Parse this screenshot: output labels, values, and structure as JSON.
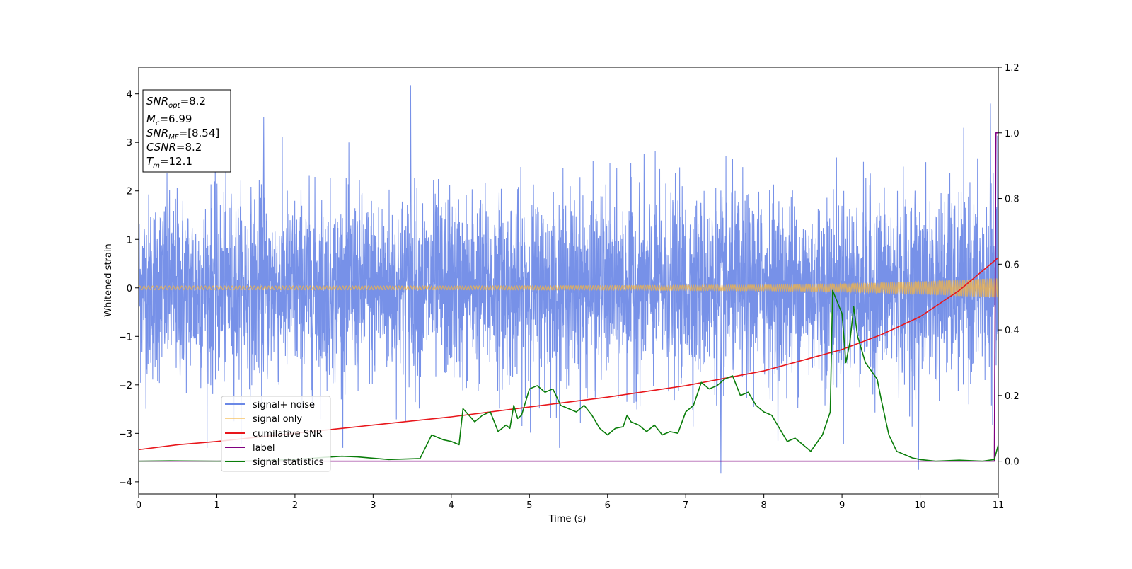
{
  "chart_data": {
    "type": "line",
    "xlabel": "Time (s)",
    "ylabel": "Whitened strain",
    "xlim": [
      0,
      11
    ],
    "ylim_left": [
      -4.25,
      4.55
    ],
    "ylim_right": [
      -0.1,
      1.2
    ],
    "xticks": [
      0,
      1,
      2,
      3,
      4,
      5,
      6,
      7,
      8,
      9,
      10,
      11
    ],
    "yticks_left": [
      -4,
      -3,
      -2,
      -1,
      0,
      1,
      2,
      3,
      4
    ],
    "yticks_right": [
      0.0,
      0.2,
      0.4,
      0.6,
      0.8,
      1.0,
      1.2
    ],
    "ytick_labels_right": [
      "0.0",
      "0.2",
      "0.4",
      "0.6",
      "0.8",
      "1.0",
      "1.2"
    ],
    "ytick_labels_left": [
      "−4",
      "−3",
      "−2",
      "−1",
      "0",
      "1",
      "2",
      "3",
      "4"
    ],
    "legend_position": "lower-left",
    "info_box": {
      "snr_opt": "=8.2",
      "mc": "=6.99",
      "snr_mf": "=[8.54]",
      "csnr": "=8.2",
      "tm": "=12.1",
      "snr_label": "SNR",
      "snr_opt_sub": "opt",
      "mc_label": "M",
      "mc_sub": "c",
      "snr_mf_sub": "MF",
      "csnr_label": "CSNR",
      "tm_label": "T",
      "tm_sub": "m"
    },
    "series": [
      {
        "name": "signal+ noise",
        "color": "#6b88e6",
        "axis": "left",
        "note": "dense whitened noise, roughly within ±2.5 with spikes to ±4",
        "peaks": [
          {
            "x": 3.48,
            "y": 4.18
          },
          {
            "x": 10.9,
            "y": 3.8
          },
          {
            "x": 7.45,
            "y": -3.83
          },
          {
            "x": 1.6,
            "y": 3.52
          },
          {
            "x": 9.98,
            "y": -3.75
          }
        ]
      },
      {
        "name": "signal only",
        "color": "#f5b642",
        "axis": "left",
        "note": "chirp signal, amplitude growing with time",
        "amplitude_envelope": [
          [
            0,
            0.04
          ],
          [
            4,
            0.04
          ],
          [
            6,
            0.045
          ],
          [
            8,
            0.06
          ],
          [
            9,
            0.08
          ],
          [
            10,
            0.13
          ],
          [
            11,
            0.2
          ]
        ]
      },
      {
        "name": "cumilative SNR",
        "color": "#e8161b",
        "axis": "right",
        "x": [
          0,
          0.5,
          1,
          2,
          3,
          4,
          5,
          6,
          7,
          8,
          9,
          9.5,
          10,
          10.5,
          11
        ],
        "values": [
          0.035,
          0.05,
          0.06,
          0.085,
          0.11,
          0.135,
          0.165,
          0.195,
          0.23,
          0.275,
          0.34,
          0.385,
          0.44,
          0.52,
          0.62
        ]
      },
      {
        "name": "label",
        "color": "#800080",
        "axis": "right",
        "x": [
          0,
          10.95,
          10.97,
          11
        ],
        "values": [
          0,
          0,
          1,
          1
        ]
      },
      {
        "name": "signal statistics",
        "color": "#0a7d0a",
        "axis": "right",
        "x": [
          0,
          0.4,
          1,
          1.5,
          2,
          2.4,
          2.6,
          2.8,
          3.2,
          3.6,
          3.75,
          3.9,
          4.0,
          4.1,
          4.15,
          4.3,
          4.4,
          4.5,
          4.6,
          4.7,
          4.75,
          4.8,
          4.85,
          4.9,
          5.0,
          5.1,
          5.2,
          5.3,
          5.4,
          5.5,
          5.6,
          5.7,
          5.8,
          5.9,
          6.0,
          6.1,
          6.2,
          6.25,
          6.3,
          6.4,
          6.5,
          6.6,
          6.7,
          6.8,
          6.9,
          7.0,
          7.1,
          7.2,
          7.3,
          7.4,
          7.5,
          7.6,
          7.7,
          7.8,
          7.9,
          8.0,
          8.1,
          8.2,
          8.3,
          8.4,
          8.5,
          8.6,
          8.75,
          8.85,
          8.88,
          9.0,
          9.05,
          9.1,
          9.15,
          9.2,
          9.3,
          9.45,
          9.5,
          9.6,
          9.7,
          9.8,
          9.9,
          10.0,
          10.2,
          10.5,
          10.8,
          10.95,
          11.0
        ],
        "values": [
          0.0,
          0.001,
          0.0,
          0.001,
          0.005,
          0.012,
          0.015,
          0.013,
          0.005,
          0.008,
          0.08,
          0.065,
          0.06,
          0.05,
          0.16,
          0.12,
          0.14,
          0.15,
          0.09,
          0.11,
          0.1,
          0.17,
          0.13,
          0.14,
          0.22,
          0.23,
          0.21,
          0.22,
          0.17,
          0.16,
          0.15,
          0.17,
          0.14,
          0.1,
          0.08,
          0.1,
          0.105,
          0.14,
          0.12,
          0.11,
          0.09,
          0.11,
          0.08,
          0.09,
          0.085,
          0.15,
          0.17,
          0.24,
          0.22,
          0.23,
          0.25,
          0.26,
          0.2,
          0.21,
          0.17,
          0.15,
          0.14,
          0.1,
          0.06,
          0.07,
          0.05,
          0.03,
          0.08,
          0.15,
          0.52,
          0.45,
          0.3,
          0.36,
          0.47,
          0.38,
          0.3,
          0.25,
          0.19,
          0.08,
          0.03,
          0.02,
          0.01,
          0.005,
          0.0,
          0.003,
          0.0,
          0.005,
          0.05
        ]
      }
    ]
  }
}
